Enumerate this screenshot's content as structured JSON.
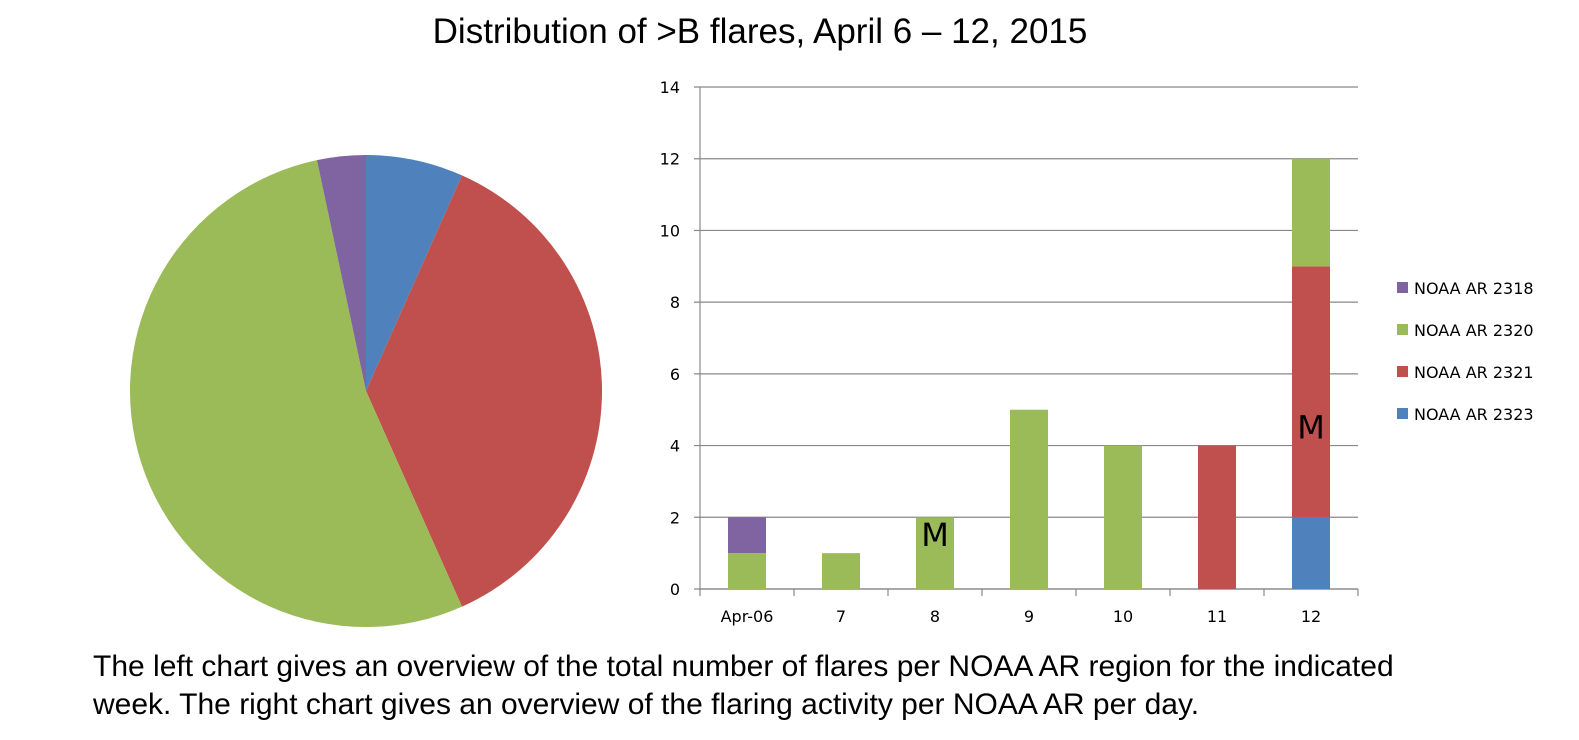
{
  "title": "Distribution of >B flares, April 6 – 12, 2015",
  "caption": {
    "line1": "The left chart gives an overview of the total number of flares per NOAA AR region for the indicated",
    "line2": "week. The right chart gives an overview of the flaring activity per NOAA AR per day."
  },
  "chart_data": [
    {
      "type": "pie",
      "labels": [
        "NOAA AR 2318",
        "NOAA AR 2320",
        "NOAA AR 2321",
        "NOAA AR 2323"
      ],
      "values": [
        1,
        16,
        11,
        2
      ],
      "colors": [
        "#8064a2",
        "#9bbb59",
        "#c0504d",
        "#4f81bd"
      ]
    },
    {
      "type": "bar",
      "stacked": true,
      "categories": [
        "Apr-06",
        "7",
        "8",
        "9",
        "10",
        "11",
        "12"
      ],
      "series": [
        {
          "name": "NOAA AR 2323",
          "color": "#4f81bd",
          "values": [
            0,
            0,
            0,
            0,
            0,
            0,
            2
          ]
        },
        {
          "name": "NOAA AR 2321",
          "color": "#c0504d",
          "values": [
            0,
            0,
            0,
            0,
            0,
            4,
            7
          ]
        },
        {
          "name": "NOAA AR 2320",
          "color": "#9bbb59",
          "values": [
            1,
            1,
            2,
            5,
            4,
            0,
            3
          ]
        },
        {
          "name": "NOAA AR 2318",
          "color": "#8064a2",
          "values": [
            1,
            0,
            0,
            0,
            0,
            0,
            0
          ]
        }
      ],
      "legend_order": [
        "NOAA AR 2318",
        "NOAA AR 2320",
        "NOAA AR 2321",
        "NOAA AR 2323"
      ],
      "ylim": [
        0,
        14
      ],
      "yticks": [
        0,
        2,
        4,
        6,
        8,
        10,
        12,
        14
      ],
      "grid": true,
      "legend_position": "right",
      "annotations": [
        {
          "text": "M",
          "category": "8",
          "y": 1.5
        },
        {
          "text": "M",
          "category": "12",
          "y": 4.5
        }
      ]
    }
  ]
}
